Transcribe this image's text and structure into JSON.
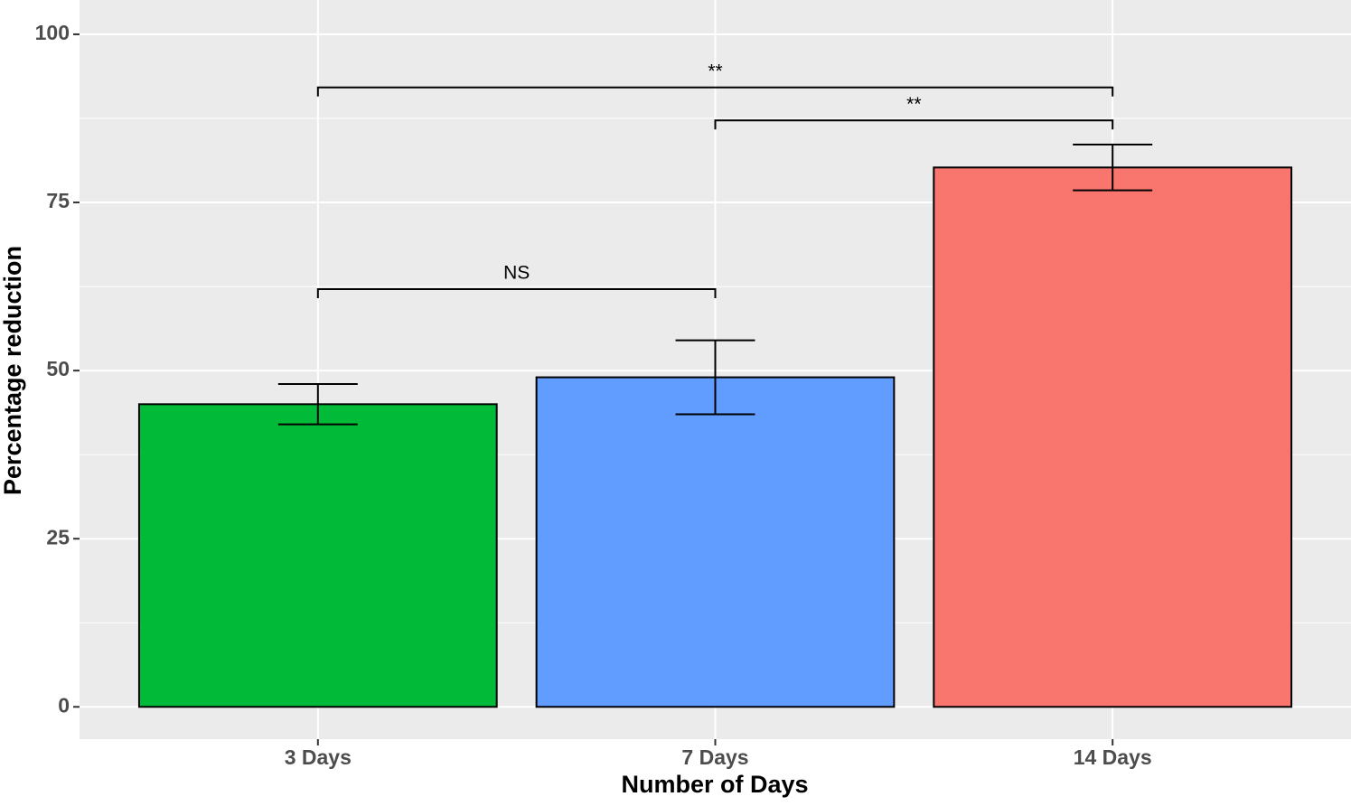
{
  "chart_data": {
    "type": "bar",
    "x_label": "Number of Days",
    "y_label": "Percentage reduction",
    "categories": [
      "3 Days",
      "7 Days",
      "14 Days"
    ],
    "values": [
      45,
      49,
      80.2
    ],
    "errors": [
      3,
      5.5,
      3.4
    ],
    "colors": [
      "#00ba38",
      "#619cff",
      "#f8766d"
    ],
    "ylim": [
      -4.8,
      105.1
    ],
    "yticks": [
      0,
      25,
      50,
      75,
      100
    ],
    "grid": true,
    "comparisons": [
      {
        "label": "NS",
        "groups": [
          0,
          1
        ],
        "y": 62.1
      },
      {
        "label": "**",
        "groups": [
          1,
          2
        ],
        "y": 87.2
      },
      {
        "label": "**",
        "groups": [
          0,
          2
        ],
        "y": 92.1
      }
    ]
  }
}
